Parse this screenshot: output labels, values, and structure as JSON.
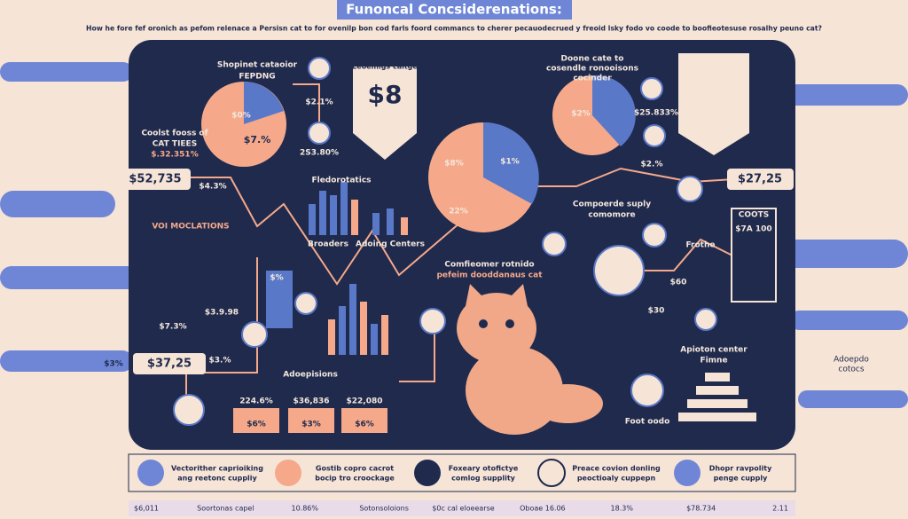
{
  "header": {
    "title": "Funoncal Concsiderenations:",
    "subtitle": "How he fore fef oronich as pefom relenace a Persisn cat to for ovenilp bon cod farls foord commancs to cherer pecauodecrued y freoid lsky fodo vo coode to boofieotesuse rosalhy peuno cat?"
  },
  "panel": {
    "labels": [
      "Shopinet cataoior",
      "FEPDNG",
      "Leoemigs caitge",
      "$8",
      "$2.1%",
      "$0%",
      "$7.%",
      "Coolst fooss of",
      "CAT TIEES",
      "$.32.351%",
      "2S3.80%",
      "Doone cate to",
      "cosendle ronooisons",
      "cocinder",
      "$2%",
      "$25.833%",
      "$1%",
      "$8%",
      "22%",
      "$2.%",
      "Fledorotatics",
      "Broaders",
      "Adoing Centers",
      "$4.3%",
      "VOI MOCLATIONS",
      "$%",
      "$3.9.98",
      "$7.3%",
      "$3.%",
      "Adoepisions",
      "224.6%",
      "$36,836",
      "$22,080",
      "$6%",
      "$3%",
      "$6%",
      "Comfieomer rotnido",
      "pefeim dooddanaus cat",
      "Compoerde suply",
      "comomore",
      "COOTS",
      "$7A 100",
      "Frothe",
      "$60",
      "$30",
      "Apioton center",
      "Fimne",
      "Foot oodo",
      "$3%"
    ],
    "callouts": [
      "$52,735",
      "$27,25",
      "$37,25"
    ],
    "side_note": [
      "Adoepdo",
      "cotocs"
    ]
  },
  "bottom_items": [
    [
      "Vectorither caprioiking",
      "ang reetonc cuppliy"
    ],
    [
      "Gostib copro cacrot",
      "bocip tro croockage"
    ],
    [
      "Foxeary otofictye",
      "comlog supplity"
    ],
    [
      "Preace covion donling",
      "peoctioaly cuppepn"
    ],
    [
      "Dhopr ravpolity",
      "penge cupply"
    ]
  ],
  "footer": [
    "$6,011",
    "Soortonas capel",
    "10.86%",
    "Sotonsoloions",
    "$0c cal eloeearse",
    "Oboae 16.06",
    "18.3%",
    "$78.734",
    "2.11"
  ]
}
